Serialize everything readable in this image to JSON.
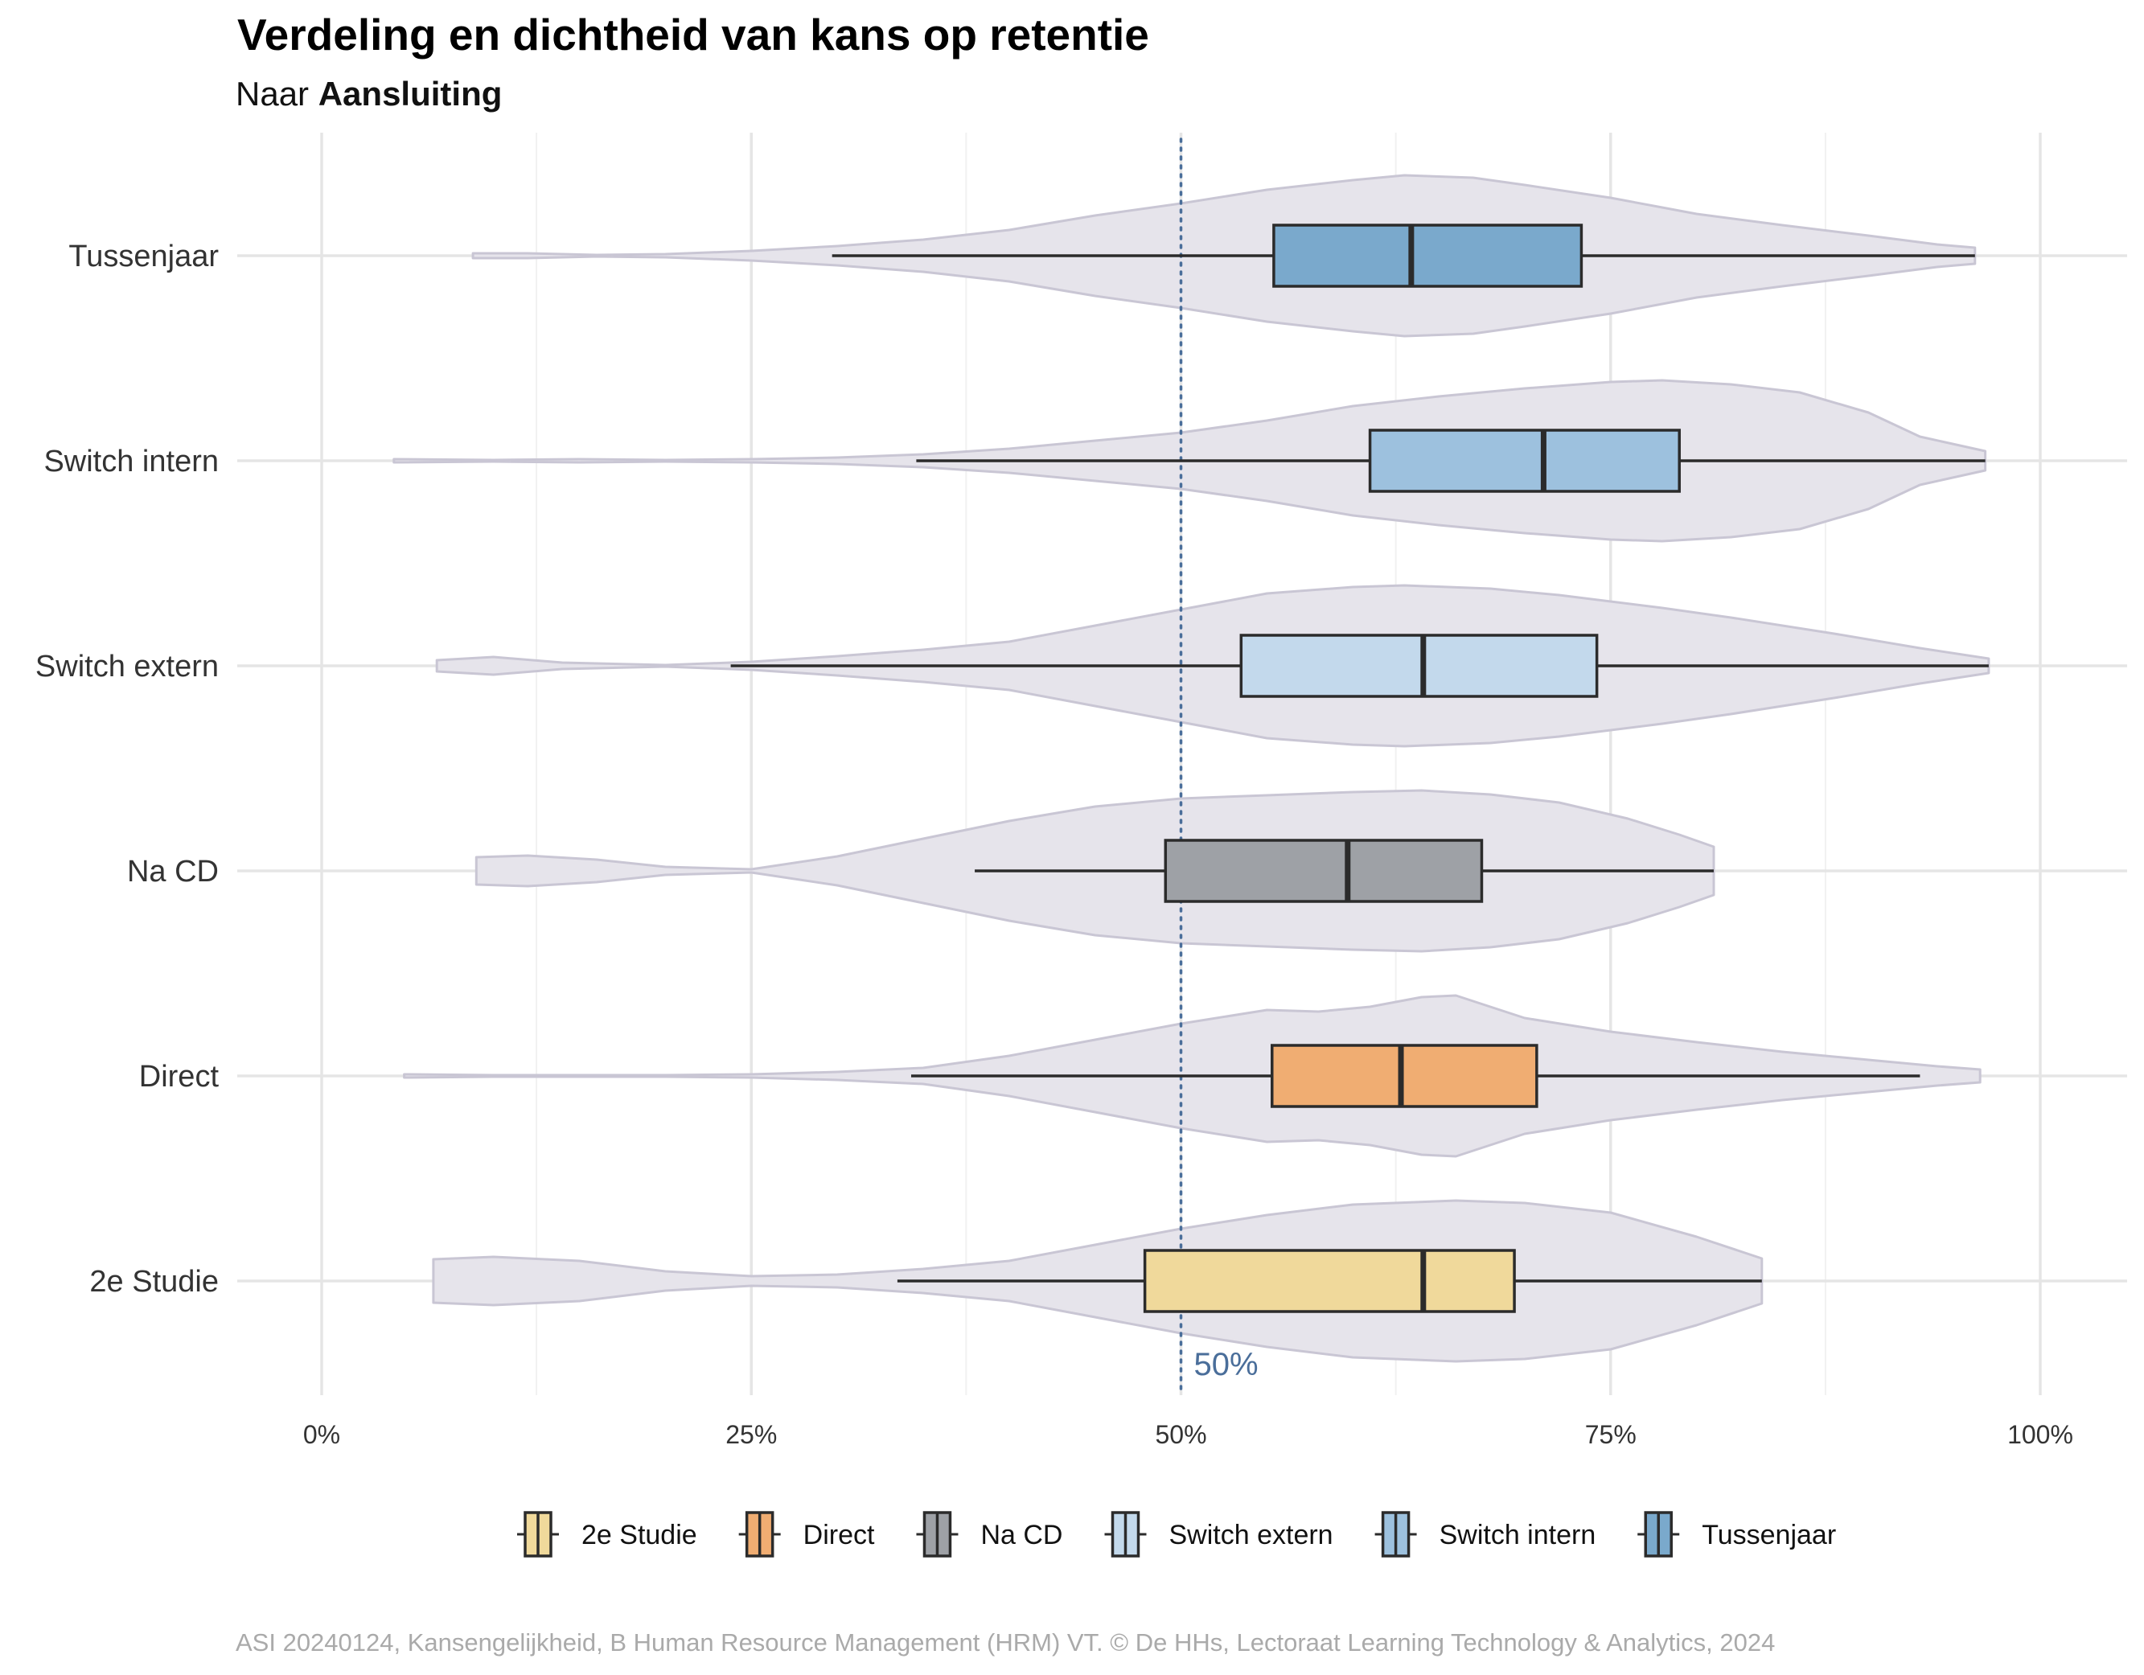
{
  "chart_data": {
    "type": "violin_boxplot",
    "orientation": "horizontal",
    "title": "Verdeling en dichtheid van kans op retentie",
    "subtitle_prefix": "Naar",
    "subtitle_bold": "Aansluiting",
    "caption": "ASI 20240124, Kansengelijkheid, B Human Resource Management (HRM) VT. © De HHs, Lectoraat Learning Technology & Analytics, 2024",
    "xlim": [
      0,
      1
    ],
    "x_ticks": [
      {
        "value": 0,
        "label": "0%"
      },
      {
        "value": 0.25,
        "label": "25%"
      },
      {
        "value": 0.5,
        "label": "50%"
      },
      {
        "value": 0.75,
        "label": "75%"
      },
      {
        "value": 1.0,
        "label": "100%"
      }
    ],
    "reference_line": {
      "value": 0.5,
      "label": "50%",
      "color": "#4a6e9a"
    },
    "violin_color": "#e6e4eb",
    "violin_stroke": "#c9c6d4",
    "legend_position": "bottom",
    "groups": [
      {
        "name": "Tussenjaar",
        "color": "#7aa9cc",
        "box": {
          "whisker_low": 0.297,
          "q1": 0.554,
          "median": 0.634,
          "q3": 0.733,
          "whisker_high": 0.962
        },
        "density": {
          "min": 0.088,
          "max": 0.962,
          "profile": [
            [
              0.088,
              0.03
            ],
            [
              0.12,
              0.03
            ],
            [
              0.16,
              0.01
            ],
            [
              0.2,
              0.02
            ],
            [
              0.25,
              0.06
            ],
            [
              0.3,
              0.12
            ],
            [
              0.35,
              0.2
            ],
            [
              0.4,
              0.32
            ],
            [
              0.45,
              0.5
            ],
            [
              0.5,
              0.65
            ],
            [
              0.55,
              0.82
            ],
            [
              0.6,
              0.94
            ],
            [
              0.63,
              1.0
            ],
            [
              0.67,
              0.97
            ],
            [
              0.7,
              0.88
            ],
            [
              0.75,
              0.72
            ],
            [
              0.8,
              0.52
            ],
            [
              0.85,
              0.38
            ],
            [
              0.9,
              0.25
            ],
            [
              0.94,
              0.14
            ],
            [
              0.962,
              0.1
            ]
          ]
        }
      },
      {
        "name": "Switch intern",
        "color": "#9dc1de",
        "box": {
          "whisker_low": 0.346,
          "q1": 0.61,
          "median": 0.711,
          "q3": 0.79,
          "whisker_high": 0.968
        },
        "density": {
          "min": 0.042,
          "max": 0.968,
          "profile": [
            [
              0.042,
              0.02
            ],
            [
              0.1,
              0.01
            ],
            [
              0.15,
              0.02
            ],
            [
              0.2,
              0.01
            ],
            [
              0.25,
              0.02
            ],
            [
              0.3,
              0.04
            ],
            [
              0.35,
              0.08
            ],
            [
              0.4,
              0.15
            ],
            [
              0.45,
              0.25
            ],
            [
              0.5,
              0.35
            ],
            [
              0.55,
              0.5
            ],
            [
              0.6,
              0.68
            ],
            [
              0.65,
              0.8
            ],
            [
              0.7,
              0.9
            ],
            [
              0.75,
              0.98
            ],
            [
              0.78,
              1.0
            ],
            [
              0.82,
              0.95
            ],
            [
              0.86,
              0.85
            ],
            [
              0.9,
              0.6
            ],
            [
              0.93,
              0.3
            ],
            [
              0.968,
              0.12
            ]
          ]
        }
      },
      {
        "name": "Switch extern",
        "color": "#c3d9ec",
        "box": {
          "whisker_low": 0.238,
          "q1": 0.535,
          "median": 0.641,
          "q3": 0.742,
          "whisker_high": 0.97
        },
        "density": {
          "min": 0.067,
          "max": 0.97,
          "profile": [
            [
              0.067,
              0.07
            ],
            [
              0.1,
              0.11
            ],
            [
              0.14,
              0.04
            ],
            [
              0.2,
              0.01
            ],
            [
              0.25,
              0.05
            ],
            [
              0.3,
              0.12
            ],
            [
              0.35,
              0.2
            ],
            [
              0.4,
              0.3
            ],
            [
              0.45,
              0.5
            ],
            [
              0.5,
              0.7
            ],
            [
              0.55,
              0.9
            ],
            [
              0.6,
              0.98
            ],
            [
              0.63,
              1.0
            ],
            [
              0.68,
              0.96
            ],
            [
              0.72,
              0.88
            ],
            [
              0.78,
              0.72
            ],
            [
              0.82,
              0.6
            ],
            [
              0.88,
              0.4
            ],
            [
              0.93,
              0.22
            ],
            [
              0.97,
              0.09
            ]
          ]
        }
      },
      {
        "name": "Na CD",
        "color": "#9ea1a6",
        "box": {
          "whisker_low": 0.38,
          "q1": 0.491,
          "median": 0.597,
          "q3": 0.675,
          "whisker_high": 0.81
        },
        "density": {
          "min": 0.09,
          "max": 0.81,
          "profile": [
            [
              0.09,
              0.17
            ],
            [
              0.12,
              0.19
            ],
            [
              0.16,
              0.14
            ],
            [
              0.2,
              0.05
            ],
            [
              0.25,
              0.02
            ],
            [
              0.3,
              0.18
            ],
            [
              0.35,
              0.4
            ],
            [
              0.4,
              0.62
            ],
            [
              0.45,
              0.8
            ],
            [
              0.5,
              0.9
            ],
            [
              0.55,
              0.94
            ],
            [
              0.6,
              0.98
            ],
            [
              0.64,
              1.0
            ],
            [
              0.68,
              0.95
            ],
            [
              0.72,
              0.85
            ],
            [
              0.76,
              0.65
            ],
            [
              0.79,
              0.45
            ],
            [
              0.81,
              0.3
            ]
          ]
        }
      },
      {
        "name": "Direct",
        "color": "#f0ad72",
        "box": {
          "whisker_low": 0.343,
          "q1": 0.553,
          "median": 0.628,
          "q3": 0.707,
          "whisker_high": 0.93
        },
        "density": {
          "min": 0.048,
          "max": 0.965,
          "profile": [
            [
              0.048,
              0.02
            ],
            [
              0.1,
              0.01
            ],
            [
              0.15,
              0.01
            ],
            [
              0.2,
              0.01
            ],
            [
              0.25,
              0.02
            ],
            [
              0.3,
              0.05
            ],
            [
              0.35,
              0.1
            ],
            [
              0.4,
              0.25
            ],
            [
              0.45,
              0.45
            ],
            [
              0.5,
              0.65
            ],
            [
              0.55,
              0.82
            ],
            [
              0.58,
              0.8
            ],
            [
              0.61,
              0.86
            ],
            [
              0.64,
              0.98
            ],
            [
              0.66,
              1.0
            ],
            [
              0.7,
              0.72
            ],
            [
              0.75,
              0.55
            ],
            [
              0.8,
              0.42
            ],
            [
              0.85,
              0.3
            ],
            [
              0.9,
              0.2
            ],
            [
              0.94,
              0.12
            ],
            [
              0.965,
              0.08
            ]
          ]
        }
      },
      {
        "name": "2e Studie",
        "color": "#f0d99b",
        "box": {
          "whisker_low": 0.335,
          "q1": 0.479,
          "median": 0.641,
          "q3": 0.694,
          "whisker_high": 0.838
        },
        "density": {
          "min": 0.065,
          "max": 0.838,
          "profile": [
            [
              0.065,
              0.27
            ],
            [
              0.1,
              0.3
            ],
            [
              0.15,
              0.25
            ],
            [
              0.2,
              0.12
            ],
            [
              0.25,
              0.06
            ],
            [
              0.3,
              0.08
            ],
            [
              0.35,
              0.15
            ],
            [
              0.4,
              0.25
            ],
            [
              0.45,
              0.45
            ],
            [
              0.5,
              0.65
            ],
            [
              0.55,
              0.82
            ],
            [
              0.6,
              0.95
            ],
            [
              0.66,
              1.0
            ],
            [
              0.7,
              0.97
            ],
            [
              0.75,
              0.85
            ],
            [
              0.8,
              0.55
            ],
            [
              0.838,
              0.28
            ]
          ]
        }
      }
    ],
    "legend": [
      {
        "label": "2e Studie",
        "color": "#f0d99b"
      },
      {
        "label": "Direct",
        "color": "#f0ad72"
      },
      {
        "label": "Na CD",
        "color": "#9ea1a6"
      },
      {
        "label": "Switch extern",
        "color": "#c3d9ec"
      },
      {
        "label": "Switch intern",
        "color": "#9dc1de"
      },
      {
        "label": "Tussenjaar",
        "color": "#7aa9cc"
      }
    ]
  }
}
